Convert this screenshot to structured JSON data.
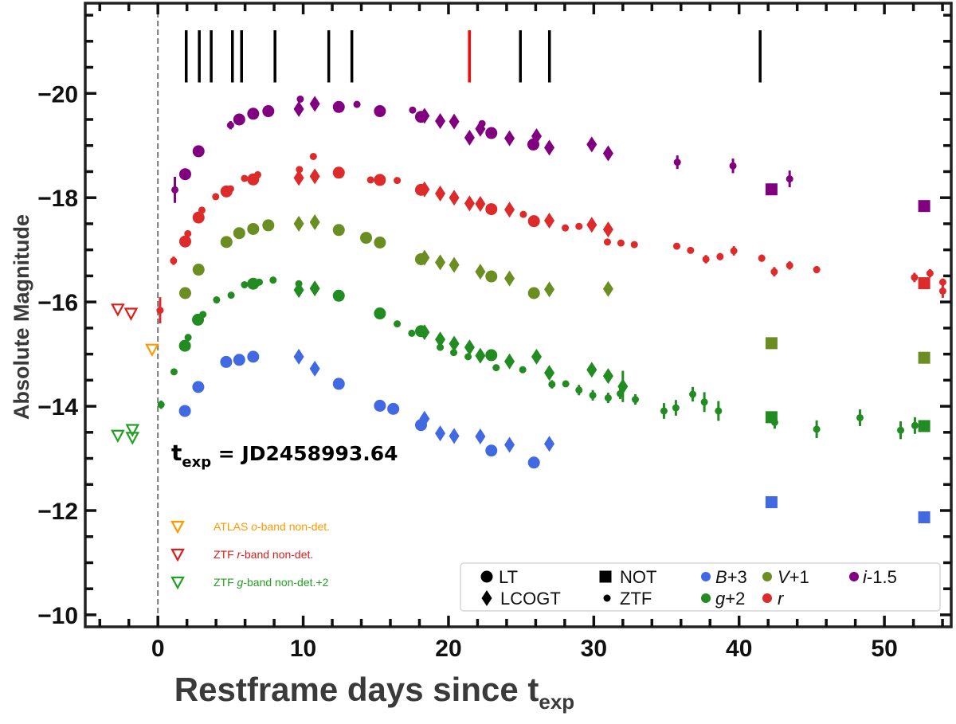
{
  "chart_data": {
    "type": "scatter",
    "xlabel_main": "Restframe days since ",
    "xlabel_t": "t",
    "xlabel_sub": "exp",
    "ylabel": "Absolute Magnitude",
    "xlim": [
      -5,
      54.6
    ],
    "ylim": [
      -21.73,
      -9.77
    ],
    "y_inverted": true,
    "grid": false,
    "x_ticks": [
      {
        "v": 0,
        "label": "0"
      },
      {
        "v": 10,
        "label": "10"
      },
      {
        "v": 20,
        "label": "20"
      },
      {
        "v": 30,
        "label": "30"
      },
      {
        "v": 40,
        "label": "40"
      },
      {
        "v": 50,
        "label": "50"
      }
    ],
    "x_minor_step": 2,
    "y_ticks": [
      {
        "v": -20,
        "label": "−20"
      },
      {
        "v": -18,
        "label": "−18"
      },
      {
        "v": -16,
        "label": "−16"
      },
      {
        "v": -14,
        "label": "−14"
      },
      {
        "v": -12,
        "label": "−12"
      },
      {
        "v": -10,
        "label": "−10"
      }
    ],
    "y_minor_step": 0.5,
    "texp_line_x": 0,
    "spectra_epochs": [
      1.95,
      2.85,
      3.67,
      5.13,
      5.76,
      8.06,
      11.76,
      13.35,
      21.44,
      24.95,
      26.95,
      41.45
    ],
    "spectra_highlight": 21.44,
    "spectra_mag_range": [
      -21.21,
      -20.21
    ],
    "spectra_color": "#000000",
    "spectra_highlight_color": "#ff0000",
    "annotation": {
      "t": "t",
      "sub": "exp",
      "text": " = JD2458993.64"
    },
    "series": [
      {
        "name": "B+3",
        "italic": "B",
        "rest": "+3",
        "color": "#4169e1",
        "LT": [
          [
            1.86,
            -13.91
          ],
          [
            2.78,
            -14.37
          ],
          [
            4.7,
            -14.85
          ],
          [
            5.6,
            -14.89
          ],
          [
            6.56,
            -14.95
          ],
          [
            12.45,
            -14.43
          ],
          [
            15.28,
            -14.01
          ],
          [
            16.2,
            -13.95
          ],
          [
            18.11,
            -13.64
          ],
          [
            22.95,
            -13.15
          ],
          [
            25.88,
            -12.92
          ]
        ],
        "LCOGT": [
          [
            9.7,
            -14.95
          ],
          [
            10.8,
            -14.72
          ],
          [
            18.35,
            -13.76
          ],
          [
            19.43,
            -13.48
          ],
          [
            20.39,
            -13.43
          ],
          [
            22.19,
            -13.42
          ],
          [
            24.2,
            -13.26
          ],
          [
            26.94,
            -13.28
          ]
        ],
        "ZTF": [],
        "NOT": [
          [
            42.23,
            -12.16
          ],
          [
            52.74,
            -11.87
          ]
        ]
      },
      {
        "name": "V+1",
        "italic": "V",
        "rest": "+1",
        "color": "#6b8e23",
        "LT": [
          [
            1.88,
            -16.17
          ],
          [
            2.8,
            -16.62
          ],
          [
            4.72,
            -17.15
          ],
          [
            5.6,
            -17.32
          ],
          [
            6.56,
            -17.4
          ],
          [
            7.6,
            -17.47
          ],
          [
            12.45,
            -17.38
          ],
          [
            14.33,
            -17.23
          ],
          [
            15.28,
            -17.14
          ],
          [
            18.11,
            -16.82
          ],
          [
            22.95,
            -16.49
          ],
          [
            25.88,
            -16.17
          ]
        ],
        "LCOGT": [
          [
            9.7,
            -17.5
          ],
          [
            10.8,
            -17.53
          ],
          [
            18.35,
            -16.85
          ],
          [
            19.43,
            -16.76
          ],
          [
            20.39,
            -16.71
          ],
          [
            22.19,
            -16.58
          ],
          [
            24.2,
            -16.45
          ],
          [
            26.94,
            -16.24
          ],
          [
            30.99,
            -16.25
          ]
        ],
        "ZTF": [],
        "NOT": [
          [
            42.23,
            -15.21
          ],
          [
            52.74,
            -14.93
          ]
        ]
      },
      {
        "name": "g+2",
        "italic": "g",
        "rest": "+2",
        "color": "#228b22",
        "LT": [
          [
            1.86,
            -15.16
          ],
          [
            2.76,
            -15.66
          ],
          [
            6.56,
            -16.35
          ],
          [
            12.45,
            -16.12
          ],
          [
            15.28,
            -15.78
          ],
          [
            18.11,
            -15.44
          ],
          [
            22.95,
            -14.98
          ]
        ],
        "LCOGT": [
          [
            9.7,
            -16.23
          ],
          [
            10.8,
            -16.26
          ],
          [
            18.35,
            -15.42
          ],
          [
            19.43,
            -15.28
          ],
          [
            20.39,
            -15.2
          ],
          [
            21.45,
            -15.13
          ],
          [
            22.19,
            -14.97
          ],
          [
            24.2,
            -14.86
          ],
          [
            26.06,
            -14.95
          ],
          [
            26.94,
            -14.64
          ],
          [
            29.86,
            -14.7
          ],
          [
            30.99,
            -14.58
          ],
          [
            32.0,
            -14.38,
            0.3
          ]
        ],
        "ZTF": [
          [
            0.22,
            -14.03,
            0.08
          ],
          [
            1.11,
            -14.66,
            0.06
          ],
          [
            2.08,
            -15.32,
            0.05
          ],
          [
            3.1,
            -15.76,
            0.05
          ],
          [
            4.04,
            -16.04,
            0.04
          ],
          [
            5.04,
            -16.13,
            0.04
          ],
          [
            5.96,
            -16.33,
            0.04
          ],
          [
            6.98,
            -16.38,
            0.04
          ],
          [
            7.93,
            -16.42,
            0.06
          ],
          [
            9.7,
            -16.35,
            0.04
          ],
          [
            16.47,
            -15.58,
            0.04
          ],
          [
            17.47,
            -15.4,
            0.04
          ],
          [
            19.43,
            -15.13,
            0.04
          ],
          [
            20.36,
            -15.03,
            0.04
          ],
          [
            21.35,
            -14.95,
            0.04
          ],
          [
            23.28,
            -14.74,
            0.04
          ],
          [
            25.11,
            -14.7,
            0.04
          ],
          [
            27.12,
            -14.42,
            0.08
          ],
          [
            28.07,
            -14.43,
            0.06
          ],
          [
            28.98,
            -14.31,
            0.1
          ],
          [
            29.93,
            -14.21,
            0.1
          ],
          [
            30.99,
            -14.16,
            0.1
          ],
          [
            31.82,
            -14.24,
            0.1
          ],
          [
            32.86,
            -14.13,
            0.1
          ],
          [
            34.83,
            -13.91,
            0.15
          ],
          [
            35.65,
            -13.97,
            0.15
          ],
          [
            36.81,
            -14.23,
            0.14
          ],
          [
            37.61,
            -14.08,
            0.19
          ],
          [
            38.58,
            -13.91,
            0.19
          ],
          [
            42.45,
            -13.69,
            0.12
          ],
          [
            45.34,
            -13.56,
            0.17
          ],
          [
            48.32,
            -13.78,
            0.16
          ],
          [
            51.12,
            -13.54,
            0.17
          ],
          [
            52.1,
            -13.63,
            0.16
          ]
        ],
        "NOT": [
          [
            42.23,
            -13.79
          ],
          [
            52.74,
            -13.62
          ]
        ]
      },
      {
        "name": "r",
        "italic": "r",
        "rest": "",
        "color": "#dd2a2a",
        "LT": [
          [
            1.88,
            -17.16
          ],
          [
            2.8,
            -17.62
          ],
          [
            4.72,
            -18.12
          ],
          [
            6.56,
            -18.35
          ],
          [
            12.45,
            -18.48
          ],
          [
            15.28,
            -18.34
          ],
          [
            18.11,
            -18.15
          ],
          [
            22.95,
            -17.78
          ],
          [
            25.88,
            -17.55
          ]
        ],
        "LCOGT": [
          [
            9.7,
            -18.38
          ],
          [
            10.8,
            -18.41
          ],
          [
            18.35,
            -18.16
          ],
          [
            19.43,
            -18.08
          ],
          [
            20.39,
            -18.0
          ],
          [
            21.45,
            -17.89
          ],
          [
            22.19,
            -17.88
          ],
          [
            24.2,
            -17.77
          ],
          [
            26.94,
            -17.56
          ],
          [
            29.86,
            -17.48
          ],
          [
            30.99,
            -17.39
          ]
        ],
        "ZTF": [
          [
            0.15,
            -15.84,
            0.25
          ],
          [
            1.08,
            -16.79,
            0.08
          ],
          [
            2.06,
            -17.31,
            0.05
          ],
          [
            3.03,
            -17.76,
            0.05
          ],
          [
            3.98,
            -18.02,
            0.04
          ],
          [
            5.0,
            -18.17,
            0.04
          ],
          [
            5.96,
            -18.37,
            0.06
          ],
          [
            6.87,
            -18.44,
            0.04
          ],
          [
            9.74,
            -18.54,
            0.04
          ],
          [
            10.7,
            -18.79,
            0.05
          ],
          [
            14.64,
            -18.34,
            0.03
          ],
          [
            16.47,
            -18.33,
            0.03
          ],
          [
            25.15,
            -17.68,
            0.03
          ],
          [
            28.04,
            -17.42,
            0.03
          ],
          [
            28.98,
            -17.45,
            0.03
          ],
          [
            30.94,
            -17.15,
            0.05
          ],
          [
            31.87,
            -17.13,
            0.06
          ],
          [
            32.79,
            -17.1,
            0.04
          ],
          [
            35.71,
            -17.07,
            0.06
          ],
          [
            36.66,
            -16.99,
            0.06
          ],
          [
            37.72,
            -16.82,
            0.08
          ],
          [
            38.69,
            -16.87,
            0.07
          ],
          [
            39.64,
            -16.98,
            0.09
          ],
          [
            41.56,
            -16.84,
            0.07
          ],
          [
            42.42,
            -16.58,
            0.09
          ],
          [
            43.48,
            -16.7,
            0.08
          ],
          [
            45.34,
            -16.62,
            0.07
          ],
          [
            52.07,
            -16.47,
            0.09
          ],
          [
            53.14,
            -16.55,
            0.08
          ],
          [
            54.02,
            -16.38,
            0.07
          ],
          [
            54.02,
            -16.21,
            0.13
          ]
        ],
        "NOT": [
          [
            52.74,
            -16.36
          ]
        ]
      },
      {
        "name": "i-1.5",
        "italic": "i",
        "rest": "-1.5",
        "color": "#800080",
        "LT": [
          [
            1.88,
            -18.45
          ],
          [
            2.8,
            -18.89
          ],
          [
            5.6,
            -19.5
          ],
          [
            6.56,
            -19.61
          ],
          [
            7.6,
            -19.66
          ],
          [
            12.45,
            -19.74
          ],
          [
            15.28,
            -19.66
          ],
          [
            18.11,
            -19.55
          ],
          [
            22.95,
            -19.24
          ],
          [
            25.84,
            -19.02
          ]
        ],
        "LCOGT": [
          [
            9.7,
            -19.7
          ],
          [
            10.8,
            -19.8
          ],
          [
            18.35,
            -19.57
          ],
          [
            19.43,
            -19.47
          ],
          [
            20.39,
            -19.46
          ],
          [
            21.45,
            -19.15
          ],
          [
            22.19,
            -19.32
          ],
          [
            24.2,
            -19.14
          ],
          [
            26.06,
            -19.18
          ],
          [
            26.94,
            -18.96
          ],
          [
            29.86,
            -19.02
          ],
          [
            30.99,
            -18.85
          ]
        ],
        "ZTF": [
          [
            1.17,
            -18.15,
            0.25
          ],
          [
            5.0,
            -19.39,
            0.08
          ],
          [
            9.8,
            -19.89,
            0.04
          ],
          [
            13.7,
            -19.79,
            0.03
          ],
          [
            17.53,
            -19.68,
            0.03
          ],
          [
            22.31,
            -19.42,
            0.04
          ],
          [
            35.75,
            -18.68,
            0.13
          ],
          [
            39.58,
            -18.61,
            0.14
          ],
          [
            43.48,
            -18.36,
            0.16
          ]
        ],
        "NOT": [
          [
            42.23,
            -18.16
          ],
          [
            52.74,
            -17.84
          ]
        ]
      }
    ],
    "upper_limits": [
      {
        "pre": "ATLAS ",
        "italic": "o",
        "post": "-band non-det.",
        "color": "#ff9900",
        "points": [
          [
            -0.4,
            -15.09
          ]
        ]
      },
      {
        "pre": "ZTF ",
        "italic": "r",
        "post": "-band non-det.",
        "color": "#dd1c1c",
        "points": [
          [
            -2.76,
            -15.86
          ],
          [
            -1.85,
            -15.78
          ]
        ]
      },
      {
        "pre": "ZTF ",
        "italic": "g",
        "post": "-band non-det.+2",
        "color": "#22a022",
        "points": [
          [
            -2.76,
            -13.44
          ],
          [
            -1.75,
            -13.55
          ],
          [
            -1.75,
            -13.4
          ]
        ]
      }
    ],
    "legend": {
      "placement": "bottom-right",
      "instruments": [
        {
          "name": "LT",
          "marker": "circle"
        },
        {
          "name": "NOT",
          "marker": "square"
        },
        {
          "name": "LCOGT",
          "marker": "diamond"
        },
        {
          "name": "ZTF",
          "marker": "small-dot"
        }
      ]
    }
  }
}
